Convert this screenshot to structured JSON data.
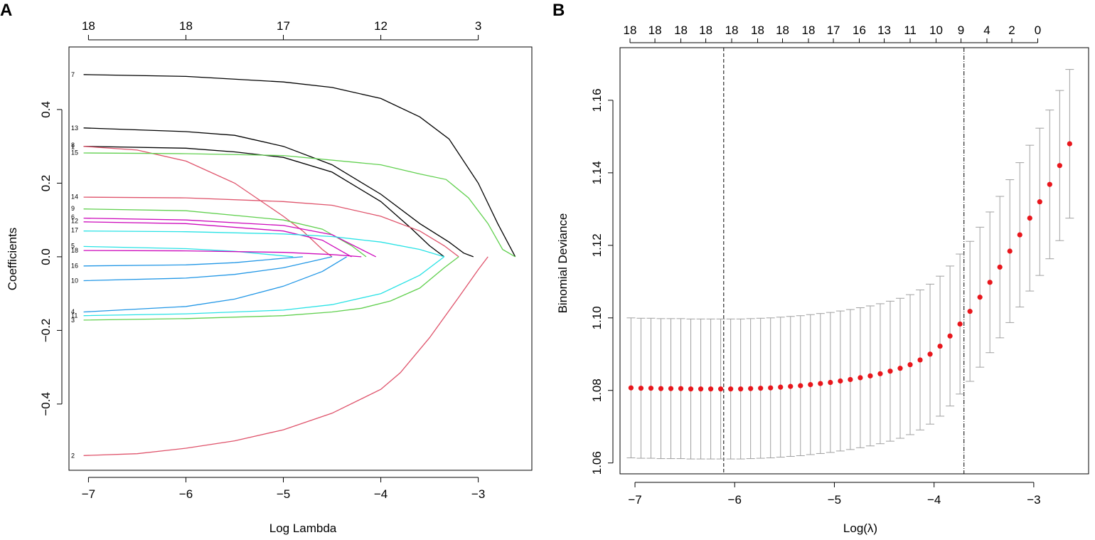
{
  "chart_data": [
    {
      "panel": "A",
      "type": "line",
      "title": "",
      "xlabel": "Log Lambda",
      "ylabel": "Coefficients",
      "xlim": [
        -7.2,
        -2.45
      ],
      "ylim": [
        -0.58,
        0.57
      ],
      "x_ticks": [
        -7,
        -6,
        -5,
        -4,
        -3
      ],
      "x_tick_labels": [
        "−7",
        "−6",
        "−5",
        "−4",
        "−3"
      ],
      "y_ticks": [
        0.4,
        0.2,
        0.0,
        -0.2,
        -0.4
      ],
      "y_tick_labels": [
        "0.4",
        "0.2",
        "0.0",
        "−0.2",
        "−0.4"
      ],
      "top_axis": {
        "positions": [
          -7,
          -6,
          -5,
          -4,
          -3
        ],
        "labels": [
          "18",
          "18",
          "17",
          "12",
          "3"
        ]
      },
      "series": [
        {
          "name": "7",
          "color": "#000000",
          "x": [
            -7.05,
            -6,
            -5,
            -4.5,
            -4,
            -3.6,
            -3.3,
            -3,
            -2.8,
            -2.62
          ],
          "y": [
            0.495,
            0.49,
            0.475,
            0.46,
            0.43,
            0.38,
            0.32,
            0.2,
            0.09,
            0
          ]
        },
        {
          "name": "13",
          "color": "#000000",
          "x": [
            -7.05,
            -6,
            -5.5,
            -5,
            -4.5,
            -4,
            -3.6,
            -3.3,
            -3.15,
            -3.05
          ],
          "y": [
            0.35,
            0.34,
            0.33,
            0.3,
            0.25,
            0.17,
            0.09,
            0.04,
            0.01,
            0
          ]
        },
        {
          "name": "8",
          "color": "#000000",
          "x": [
            -7.05,
            -6,
            -5.5,
            -5,
            -4.5,
            -4,
            -3.7,
            -3.5,
            -3.35
          ],
          "y": [
            0.3,
            0.295,
            0.285,
            0.27,
            0.23,
            0.15,
            0.08,
            0.03,
            0
          ]
        },
        {
          "name": "1",
          "color": "#DF536B",
          "x": [
            -7.05,
            -6.5,
            -6,
            -5.5,
            -5,
            -4.8,
            -4.6,
            -4.5
          ],
          "y": [
            0.3,
            0.29,
            0.26,
            0.2,
            0.11,
            0.07,
            0.02,
            0
          ]
        },
        {
          "name": "15",
          "color": "#61D04F",
          "x": [
            -7.05,
            -6,
            -5,
            -4,
            -3.6,
            -3.33,
            -3.1,
            -2.9,
            -2.75,
            -2.62
          ],
          "y": [
            0.282,
            0.28,
            0.275,
            0.25,
            0.225,
            0.21,
            0.16,
            0.09,
            0.02,
            0
          ]
        },
        {
          "name": "14",
          "color": "#DF536B",
          "x": [
            -7.05,
            -6,
            -5,
            -4.5,
            -4,
            -3.6,
            -3.35,
            -3.2
          ],
          "y": [
            0.162,
            0.16,
            0.15,
            0.14,
            0.11,
            0.07,
            0.03,
            0
          ]
        },
        {
          "name": "9",
          "color": "#61D04F",
          "x": [
            -7.05,
            -6,
            -5,
            -4.6,
            -4.3,
            -4.15
          ],
          "y": [
            0.13,
            0.125,
            0.1,
            0.075,
            0.03,
            0
          ]
        },
        {
          "name": "6",
          "color": "#CD0BBC",
          "x": [
            -7.05,
            -6,
            -5,
            -4.5,
            -4.2,
            -4.05
          ],
          "y": [
            0.105,
            0.1,
            0.085,
            0.06,
            0.02,
            0
          ]
        },
        {
          "name": "12",
          "color": "#CD0BBC",
          "x": [
            -7.05,
            -6,
            -5,
            -4.6,
            -4.4,
            -4.3
          ],
          "y": [
            0.095,
            0.09,
            0.07,
            0.045,
            0.015,
            0
          ]
        },
        {
          "name": "17",
          "color": "#28E2E5",
          "x": [
            -7.05,
            -6,
            -5,
            -4.5,
            -4,
            -3.6,
            -3.35
          ],
          "y": [
            0.07,
            0.068,
            0.062,
            0.055,
            0.04,
            0.02,
            0
          ]
        },
        {
          "name": "5",
          "color": "#28E2E5",
          "x": [
            -7.05,
            -6,
            -5.5,
            -5.1,
            -4.9
          ],
          "y": [
            0.028,
            0.022,
            0.015,
            0.005,
            0
          ]
        },
        {
          "name": "18",
          "color": "#CD0BBC",
          "x": [
            -7.05,
            -6,
            -5,
            -4.5,
            -4.2
          ],
          "y": [
            0.017,
            0.016,
            0.012,
            0.006,
            0
          ]
        },
        {
          "name": "16",
          "color": "#2297E6",
          "x": [
            -7.05,
            -6,
            -5.5,
            -5,
            -4.8
          ],
          "y": [
            -0.025,
            -0.022,
            -0.016,
            -0.004,
            0
          ]
        },
        {
          "name": "10",
          "color": "#2297E6",
          "x": [
            -7.05,
            -6,
            -5.5,
            -5,
            -4.7,
            -4.5
          ],
          "y": [
            -0.065,
            -0.058,
            -0.048,
            -0.03,
            -0.012,
            0
          ]
        },
        {
          "name": "4",
          "color": "#2297E6",
          "x": [
            -7.05,
            -6,
            -5.5,
            -5,
            -4.6,
            -4.35
          ],
          "y": [
            -0.15,
            -0.135,
            -0.115,
            -0.08,
            -0.04,
            0
          ]
        },
        {
          "name": "11",
          "color": "#28E2E5",
          "x": [
            -7.05,
            -6,
            -5,
            -4.5,
            -4,
            -3.6,
            -3.35
          ],
          "y": [
            -0.16,
            -0.155,
            -0.145,
            -0.13,
            -0.1,
            -0.05,
            0
          ]
        },
        {
          "name": "3",
          "color": "#61D04F",
          "x": [
            -7.05,
            -6,
            -5,
            -4.5,
            -4.2,
            -3.9,
            -3.6,
            -3.35,
            -3.2
          ],
          "y": [
            -0.172,
            -0.168,
            -0.16,
            -0.15,
            -0.14,
            -0.12,
            -0.085,
            -0.03,
            0
          ]
        },
        {
          "name": "2",
          "color": "#DF536B",
          "x": [
            -7.05,
            -6.5,
            -6,
            -5.5,
            -5,
            -4.5,
            -4,
            -3.8,
            -3.5,
            -3.2,
            -3,
            -2.9
          ],
          "y": [
            -0.54,
            -0.535,
            -0.52,
            -0.5,
            -0.47,
            -0.425,
            -0.36,
            -0.315,
            -0.22,
            -0.11,
            -0.035,
            0
          ]
        }
      ],
      "path_labels": [
        {
          "text": "7",
          "y": 0.495
        },
        {
          "text": "13",
          "y": 0.35
        },
        {
          "text": "8",
          "y": 0.303
        },
        {
          "text": "1",
          "y": 0.298
        },
        {
          "text": "15",
          "y": 0.283
        },
        {
          "text": "14",
          "y": 0.163
        },
        {
          "text": "9",
          "y": 0.131
        },
        {
          "text": "6",
          "y": 0.108
        },
        {
          "text": "12",
          "y": 0.097
        },
        {
          "text": "17",
          "y": 0.072
        },
        {
          "text": "5",
          "y": 0.03
        },
        {
          "text": "18",
          "y": 0.017
        },
        {
          "text": "16",
          "y": -0.024
        },
        {
          "text": "10",
          "y": -0.065
        },
        {
          "text": "4",
          "y": -0.149
        },
        {
          "text": "11",
          "y": -0.16
        },
        {
          "text": "3",
          "y": -0.172
        },
        {
          "text": "2",
          "y": -0.54
        }
      ]
    },
    {
      "panel": "B",
      "type": "scatter",
      "title": "",
      "xlabel": "Log(λ)",
      "ylabel": "Binomial Deviance",
      "xlim": [
        -7.15,
        -2.45
      ],
      "ylim": [
        1.057,
        1.1745
      ],
      "x_ticks": [
        -7,
        -6,
        -5,
        -4,
        -3
      ],
      "x_tick_labels": [
        "−7",
        "−6",
        "−5",
        "−4",
        "−3"
      ],
      "y_ticks": [
        1.06,
        1.08,
        1.1,
        1.12,
        1.14,
        1.16
      ],
      "y_tick_labels": [
        "1.06",
        "1.08",
        "1.10",
        "1.12",
        "1.14",
        "1.16"
      ],
      "top_axis": {
        "positions": [
          -7.05,
          -6.8,
          -6.54,
          -6.29,
          -6.03,
          -5.77,
          -5.52,
          -5.26,
          -5.01,
          -4.75,
          -4.5,
          -4.24,
          -3.98,
          -3.73,
          -3.47,
          -3.22,
          -2.96
        ],
        "labels": [
          "18",
          "18",
          "18",
          "18",
          "18",
          "18",
          "18",
          "18",
          "17",
          "16",
          "13",
          "11",
          "10",
          "9",
          "4",
          "2",
          "0"
        ]
      },
      "lambda_min": -6.11,
      "lambda_1se": -3.7,
      "x": [
        -7.04,
        -6.94,
        -6.84,
        -6.74,
        -6.64,
        -6.54,
        -6.44,
        -6.34,
        -6.24,
        -6.14,
        -6.04,
        -5.94,
        -5.84,
        -5.74,
        -5.64,
        -5.54,
        -5.44,
        -5.34,
        -5.24,
        -5.14,
        -5.04,
        -4.94,
        -4.84,
        -4.74,
        -4.64,
        -4.54,
        -4.44,
        -4.34,
        -4.24,
        -4.14,
        -4.04,
        -3.94,
        -3.84,
        -3.74,
        -3.64,
        -3.54,
        -3.44,
        -3.34,
        -3.24,
        -3.14,
        -3.04,
        -2.94,
        -2.84,
        -2.74,
        -2.64
      ],
      "deviance": [
        1.0807,
        1.0806,
        1.0806,
        1.0805,
        1.0805,
        1.0805,
        1.0804,
        1.0804,
        1.0804,
        1.0804,
        1.0804,
        1.0804,
        1.0805,
        1.0806,
        1.0807,
        1.0809,
        1.0811,
        1.0813,
        1.0816,
        1.0819,
        1.0822,
        1.0826,
        1.083,
        1.0835,
        1.084,
        1.0846,
        1.0853,
        1.0861,
        1.0871,
        1.0884,
        1.09,
        1.0922,
        1.095,
        1.0983,
        1.1018,
        1.1057,
        1.1098,
        1.114,
        1.1184,
        1.1229,
        1.1275,
        1.132,
        1.1368,
        1.142,
        1.148
      ],
      "se_half_width": [
        0.0193,
        0.0193,
        0.0193,
        0.0193,
        0.0193,
        0.0193,
        0.0193,
        0.0193,
        0.0193,
        0.0193,
        0.0193,
        0.0193,
        0.0193,
        0.0193,
        0.0193,
        0.0193,
        0.0193,
        0.0193,
        0.0193,
        0.0193,
        0.0193,
        0.0193,
        0.0193,
        0.0193,
        0.0193,
        0.0193,
        0.0193,
        0.0193,
        0.0193,
        0.0193,
        0.0193,
        0.0193,
        0.0193,
        0.0193,
        0.0193,
        0.0193,
        0.0194,
        0.0195,
        0.0197,
        0.0199,
        0.0201,
        0.0203,
        0.0205,
        0.0207,
        0.0205
      ]
    }
  ]
}
